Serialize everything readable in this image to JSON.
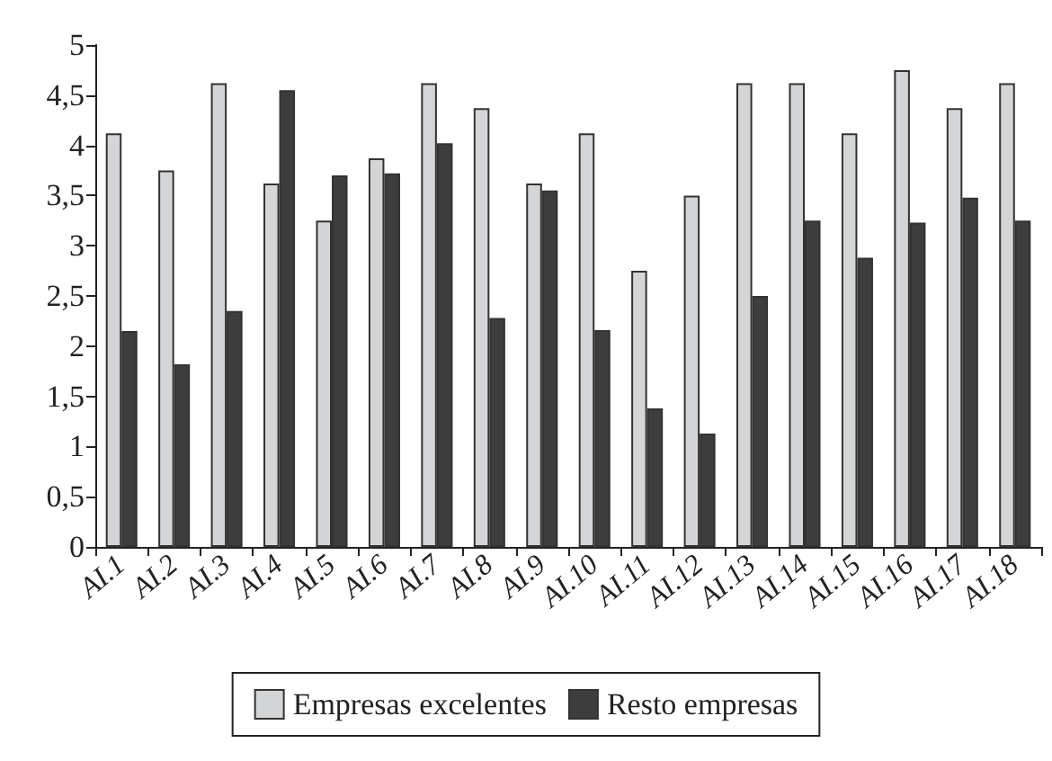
{
  "chart_data": {
    "type": "bar",
    "categories": [
      "AI.1",
      "AI.2",
      "AI.3",
      "AI.4",
      "AI.5",
      "AI.6",
      "AI.7",
      "AI.8",
      "AI.9",
      "AI.10",
      "AI.11",
      "AI.12",
      "AI.13",
      "AI.14",
      "AI.15",
      "AI.16",
      "AI.17",
      "AI.18"
    ],
    "series": [
      {
        "name": "Empresas excelentes",
        "color": "#d4d5d7",
        "values": [
          4.12,
          3.75,
          4.62,
          3.62,
          3.25,
          3.87,
          4.62,
          4.37,
          3.62,
          4.12,
          2.75,
          3.5,
          4.62,
          4.62,
          4.12,
          4.75,
          4.37,
          4.62
        ]
      },
      {
        "name": "Resto empresas",
        "color": "#3d3d3d",
        "values": [
          2.15,
          1.82,
          2.35,
          4.55,
          3.7,
          3.72,
          4.02,
          2.28,
          3.55,
          2.16,
          1.38,
          1.13,
          2.5,
          3.25,
          2.88,
          3.23,
          3.48,
          3.25
        ]
      }
    ],
    "ylim": [
      0,
      5
    ],
    "yticks": [
      0,
      {
        "value": 0.5,
        "label": "0,5"
      },
      1,
      {
        "value": 1.5,
        "label": "1,5"
      },
      2,
      {
        "value": 2.5,
        "label": "2,5"
      },
      3,
      {
        "value": 3.5,
        "label": "3,5"
      },
      4,
      {
        "value": 4.5,
        "label": "4,5"
      },
      5
    ],
    "grid": false,
    "legend": "bottom"
  }
}
